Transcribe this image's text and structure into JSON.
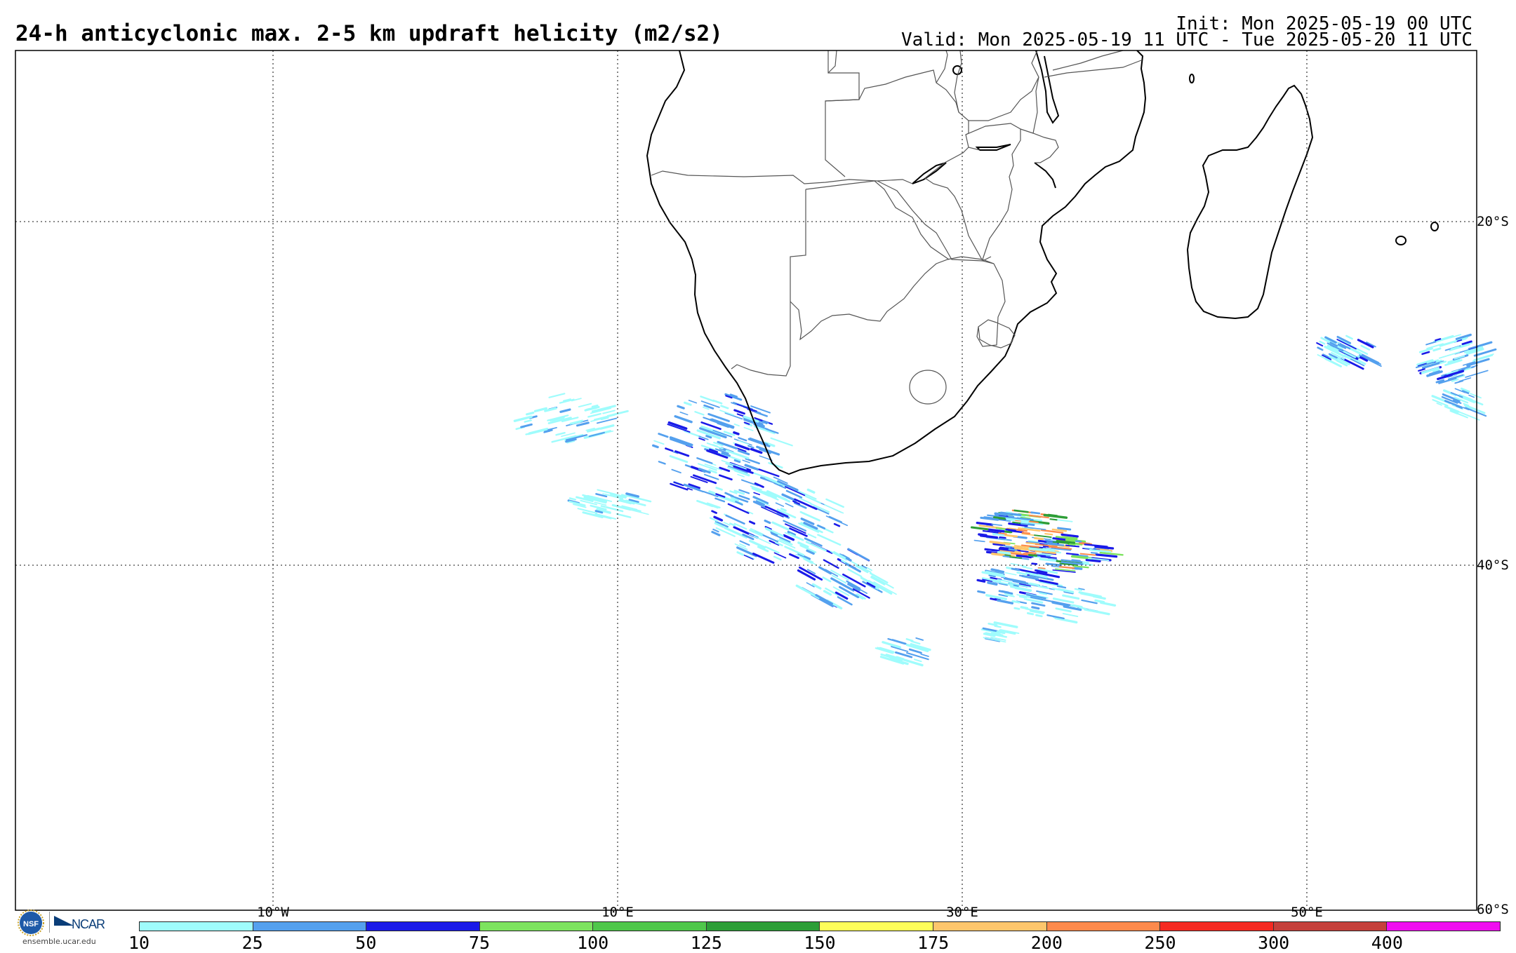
{
  "header": {
    "title": "24-h anticyclonic max. 2-5 km updraft helicity (m2/s2)",
    "init": "Init: Mon 2025-05-19 00 UTC",
    "valid": "Valid: Mon 2025-05-19 11 UTC - Tue 2025-05-20 11 UTC"
  },
  "map": {
    "lat_labels": [
      "20°S",
      "40°S",
      "60°S"
    ],
    "lon_labels": [
      "10°W",
      "10°E",
      "30°E",
      "50°E"
    ],
    "land_outline_color": "#000000",
    "grid_color": "#444444"
  },
  "colorbar": {
    "ticks": [
      "10",
      "25",
      "50",
      "75",
      "100",
      "125",
      "150",
      "175",
      "200",
      "250",
      "300",
      "400"
    ],
    "colors": [
      "#9ffcfc",
      "#54a0ee",
      "#1a1ae8",
      "#7de35f",
      "#4fc74a",
      "#2d9e37",
      "#fefe5a",
      "#fec66c",
      "#fd8a4c",
      "#f52a22",
      "#c5403b",
      "#f00ef0"
    ]
  },
  "branding": {
    "nsf_logo": "nsf-logo",
    "ncar_logo_text": "NCAR",
    "url": "ensemble.ucar.edu"
  }
}
